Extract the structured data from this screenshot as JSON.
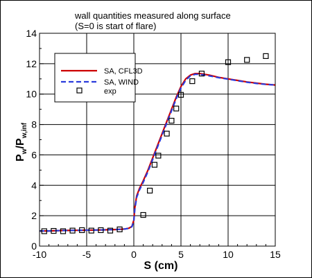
{
  "chart_data": {
    "type": "line",
    "title": "wall quantities measured along surface",
    "subtitle": "(S=0 is start of flare)",
    "xlabel": "S (cm)",
    "ylabel_main": "P",
    "ylabel_sub1": "w",
    "ylabel_mid": "/P",
    "ylabel_sub2": "w,inf",
    "xlim": [
      -10,
      15
    ],
    "ylim": [
      0,
      14
    ],
    "x_ticks": [
      -10,
      -5,
      0,
      5,
      10,
      15
    ],
    "y_ticks": [
      0,
      2,
      4,
      6,
      8,
      10,
      12,
      14
    ],
    "grid": true,
    "legend_position": "top-left",
    "series": [
      {
        "name": "SA, CFL3D",
        "style": "solid",
        "color": "#cc0000",
        "x": [
          -10,
          -9,
          -8,
          -7,
          -6,
          -5,
          -4,
          -3,
          -2,
          -1,
          -0.5,
          -0.2,
          0,
          0.1,
          0.3,
          0.6,
          1,
          1.5,
          2,
          2.5,
          3,
          3.5,
          4,
          4.5,
          5,
          5.5,
          6,
          6.5,
          7,
          7.5,
          8,
          9,
          10,
          11,
          12,
          13,
          14,
          15
        ],
        "y": [
          1.0,
          1.0,
          1.02,
          1.03,
          1.04,
          1.05,
          1.06,
          1.07,
          1.09,
          1.12,
          1.18,
          1.3,
          1.7,
          2.5,
          3.3,
          3.8,
          4.3,
          5.0,
          5.8,
          6.6,
          7.4,
          8.2,
          9.0,
          9.8,
          10.5,
          11.0,
          11.25,
          11.35,
          11.35,
          11.3,
          11.25,
          11.1,
          11.0,
          10.9,
          10.8,
          10.72,
          10.65,
          10.6
        ]
      },
      {
        "name": "SA, WIND",
        "style": "dashed",
        "color": "#2a3bdc",
        "x": [
          -10,
          -9,
          -8,
          -7,
          -6,
          -5,
          -4,
          -3,
          -2,
          -1,
          -0.5,
          -0.2,
          0,
          0.1,
          0.3,
          0.6,
          1,
          1.5,
          2,
          2.5,
          3,
          3.5,
          4,
          4.5,
          5,
          5.5,
          6,
          6.5,
          7,
          7.5,
          8,
          9,
          10,
          11,
          12,
          13,
          14,
          15
        ],
        "y": [
          1.0,
          1.0,
          1.02,
          1.03,
          1.04,
          1.05,
          1.06,
          1.07,
          1.09,
          1.12,
          1.17,
          1.28,
          1.65,
          2.4,
          3.2,
          3.7,
          4.2,
          4.9,
          5.7,
          6.5,
          7.3,
          8.1,
          8.9,
          9.7,
          10.4,
          10.9,
          11.2,
          11.3,
          11.3,
          11.25,
          11.2,
          11.08,
          10.98,
          10.88,
          10.78,
          10.7,
          10.64,
          10.6
        ]
      },
      {
        "name": "exp",
        "style": "markers",
        "color": "#000000",
        "x": [
          -9.5,
          -8.5,
          -7.5,
          -6.5,
          -5.5,
          -4.5,
          -3.5,
          -2.5,
          -1.5,
          1.0,
          1.7,
          2.2,
          2.6,
          3.5,
          4.0,
          4.5,
          5.0,
          6.2,
          7.2,
          10.0,
          12.0,
          14.0
        ],
        "y": [
          0.98,
          1.0,
          0.98,
          1.02,
          1.05,
          1.02,
          1.05,
          1.02,
          1.1,
          2.05,
          3.65,
          5.35,
          5.95,
          7.4,
          8.25,
          9.05,
          9.95,
          10.85,
          11.35,
          12.1,
          12.25,
          12.5
        ]
      }
    ]
  }
}
